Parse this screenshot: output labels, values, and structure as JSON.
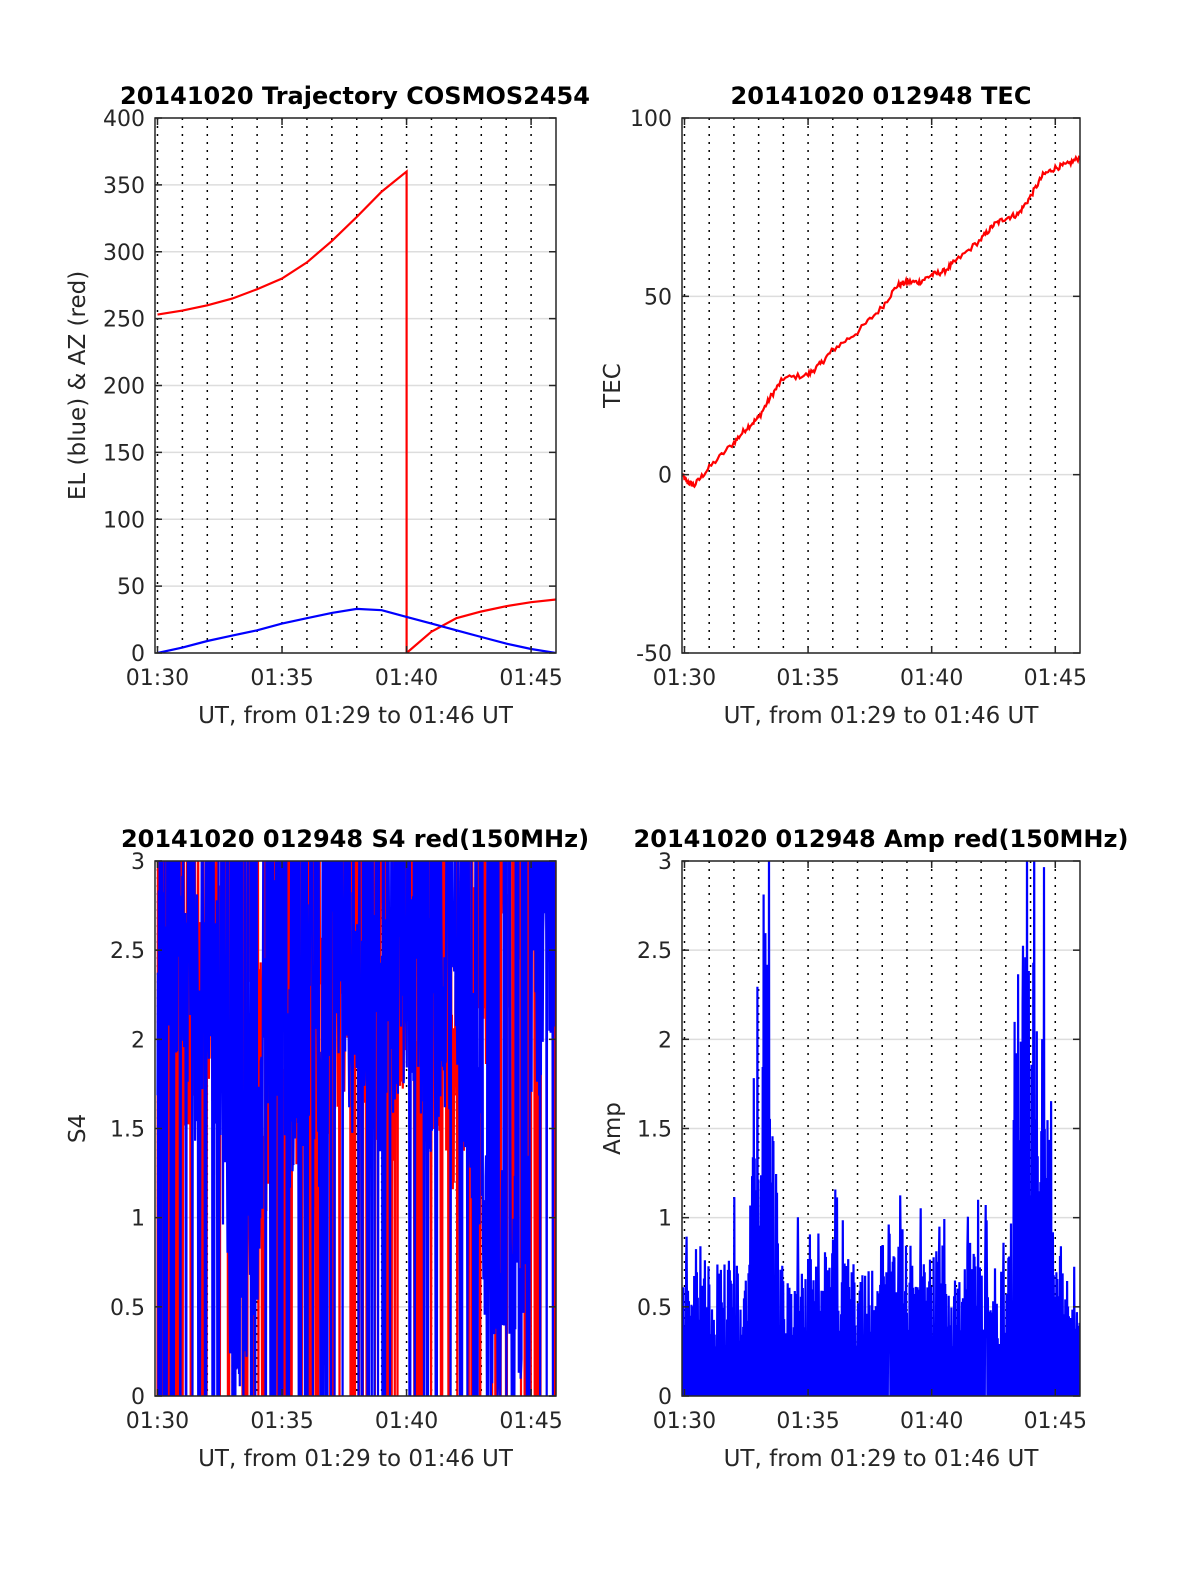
{
  "colors": {
    "red": "#ff0000",
    "blue": "#0000ff",
    "grid": "#dddddd",
    "vline": "#000000",
    "axis": "#262626"
  },
  "chart_data": [
    {
      "id": "trajectory",
      "type": "line",
      "title": "20141020 Trajectory COSMOS2454",
      "xlabel": "UT, from 01:29 to 01:46 UT",
      "ylabel": "EL (blue) & AZ (red)",
      "xlim": [
        29.9,
        46.0
      ],
      "ylim": [
        0,
        400
      ],
      "yticks": [
        0,
        50,
        100,
        150,
        200,
        250,
        300,
        350,
        400
      ],
      "xticks": [
        30,
        35,
        40,
        45
      ],
      "xticklabels": [
        "01:30",
        "01:35",
        "01:40",
        "01:45"
      ],
      "grid": true,
      "series": [
        {
          "color": "red",
          "x": [
            30.0,
            31,
            32,
            33,
            34,
            35,
            36,
            37,
            38,
            39,
            40.0,
            40.0,
            40.0,
            41,
            42,
            43,
            44,
            45,
            46.0
          ],
          "y": [
            253,
            256,
            260,
            265,
            272,
            280,
            292,
            308,
            326,
            345,
            360,
            360,
            0,
            16,
            26,
            31,
            35,
            38,
            40
          ]
        },
        {
          "color": "blue",
          "x": [
            30.0,
            31,
            32,
            33,
            34,
            35,
            36,
            37,
            38,
            39,
            40,
            41,
            42,
            43,
            44,
            45,
            46.0
          ],
          "y": [
            0,
            4,
            9,
            13,
            17,
            22,
            26,
            30,
            33,
            32,
            27,
            22,
            17,
            12,
            7,
            3,
            0
          ]
        }
      ]
    },
    {
      "id": "tec",
      "type": "line",
      "title": "20141020 012948 TEC",
      "xlabel": "UT, from 01:29 to 01:46 UT",
      "ylabel": "TEC",
      "xlim": [
        29.9,
        46.0
      ],
      "ylim": [
        -50,
        100
      ],
      "yticks": [
        -50,
        0,
        50,
        100
      ],
      "xticks": [
        30,
        35,
        40,
        45
      ],
      "xticklabels": [
        "01:30",
        "01:35",
        "01:40",
        "01:45"
      ],
      "grid": true,
      "series": [
        {
          "color": "red",
          "x": [
            29.9,
            30.1,
            30.4,
            31,
            32,
            32.5,
            33,
            33.5,
            34,
            35,
            35.5,
            36,
            37,
            38,
            38.6,
            39,
            39.5,
            40,
            40.5,
            41,
            42,
            42.5,
            43,
            43.5,
            44,
            44.5,
            45,
            45.5,
            46.0
          ],
          "y": [
            0,
            -2,
            -3,
            2,
            9,
            13,
            16,
            22,
            27,
            28,
            31,
            35,
            40,
            47,
            53,
            54,
            54,
            56,
            57,
            60,
            66,
            70,
            72,
            73,
            78,
            84,
            86,
            87,
            89
          ]
        }
      ]
    },
    {
      "id": "s4",
      "type": "line",
      "title": "20141020 012948 S4 red(150MHz)",
      "xlabel": "UT, from 01:29 to 01:46 UT",
      "ylabel": "S4",
      "xlim": [
        29.9,
        46.0
      ],
      "ylim": [
        0,
        3
      ],
      "yticks": [
        0,
        0.5,
        1,
        1.5,
        2,
        2.5,
        3
      ],
      "ytickformat": "short",
      "xticks": [
        30,
        35,
        40,
        45
      ],
      "xticklabels": [
        "01:30",
        "01:35",
        "01:40",
        "01:45"
      ],
      "grid": true,
      "series": [
        {
          "color": "red",
          "noise": true,
          "x": [
            30.0,
            30.5,
            31,
            31.5,
            32,
            32.5,
            33,
            33.5,
            34,
            34.5,
            35,
            35.5,
            36,
            36.5,
            37,
            37.5,
            38,
            38.5,
            39,
            39.5,
            40,
            40.5,
            41,
            41.5,
            42,
            42.5,
            43,
            43.5,
            44,
            44.5,
            45,
            45.5,
            46.0
          ],
          "y": [
            2.2,
            2.3,
            2.0,
            2.1,
            2.4,
            2.2,
            1.5,
            1.9,
            2.0,
            1.6,
            2.3,
            2.0,
            1.6,
            1.9,
            2.2,
            2.3,
            2.1,
            2.3,
            1.8,
            2.0,
            2.6,
            2.4,
            2.1,
            2.0,
            1.8,
            2.2,
            2.4,
            2.8,
            2.9,
            2.7,
            2.8,
            2.6,
            2.6
          ]
        },
        {
          "color": "blue",
          "noise": true,
          "x": [
            30.0,
            30.5,
            31,
            31.5,
            32,
            32.5,
            33,
            33.3,
            33.6,
            34,
            34.5,
            35,
            35.5,
            36,
            36.5,
            37,
            37.5,
            38,
            38.5,
            39,
            39.5,
            40,
            40.5,
            41,
            41.5,
            42,
            42.5,
            43,
            43.4,
            43.8,
            44.2,
            44.6,
            45,
            45.5,
            46.0
          ],
          "y": [
            2.2,
            2.4,
            2.3,
            2.1,
            2.4,
            2.0,
            0.7,
            0.7,
            0.9,
            1.2,
            2.3,
            2.1,
            1.7,
            2.2,
            1.8,
            2.4,
            2.3,
            2.1,
            2.3,
            1.9,
            2.2,
            2.5,
            2.3,
            2.0,
            2.2,
            2.3,
            2.0,
            1.2,
            0.7,
            0.6,
            0.7,
            0.8,
            2.0,
            2.4,
            2.6
          ]
        }
      ]
    },
    {
      "id": "amp",
      "type": "line",
      "title": "20141020 012948 Amp red(150MHz)",
      "xlabel": "UT, from 01:29 to 01:46 UT",
      "ylabel": "Amp",
      "xlim": [
        29.9,
        46.0
      ],
      "ylim": [
        0,
        3
      ],
      "yticks": [
        0,
        0.5,
        1,
        1.5,
        2,
        2.5,
        3
      ],
      "xticks": [
        30,
        35,
        40,
        45
      ],
      "xticklabels": [
        "01:30",
        "01:35",
        "01:40",
        "01:45"
      ],
      "grid": true,
      "series": [
        {
          "color": "blue",
          "noise": true,
          "spiky": true,
          "x": [
            29.8,
            30.0,
            30.5,
            31,
            31.5,
            32,
            32.5,
            33,
            33.3,
            33.6,
            34,
            34.5,
            35,
            35.5,
            36,
            36.5,
            37,
            37.5,
            38,
            38.5,
            39,
            39.5,
            40,
            40.5,
            41,
            41.5,
            42,
            42.5,
            43,
            43.5,
            44,
            44.5,
            45,
            45.5,
            46.0
          ],
          "y": [
            0,
            0.6,
            0.7,
            0.6,
            0.6,
            0.6,
            0.6,
            1.9,
            2.3,
            1.2,
            0.5,
            0.5,
            0.6,
            0.6,
            0.7,
            0.6,
            0.6,
            0.6,
            0.7,
            0.6,
            0.7,
            0.6,
            0.6,
            0.7,
            0.6,
            0.7,
            0.6,
            0.6,
            0.5,
            1.9,
            2.0,
            1.6,
            0.8,
            0.5,
            0.4
          ]
        }
      ]
    }
  ]
}
